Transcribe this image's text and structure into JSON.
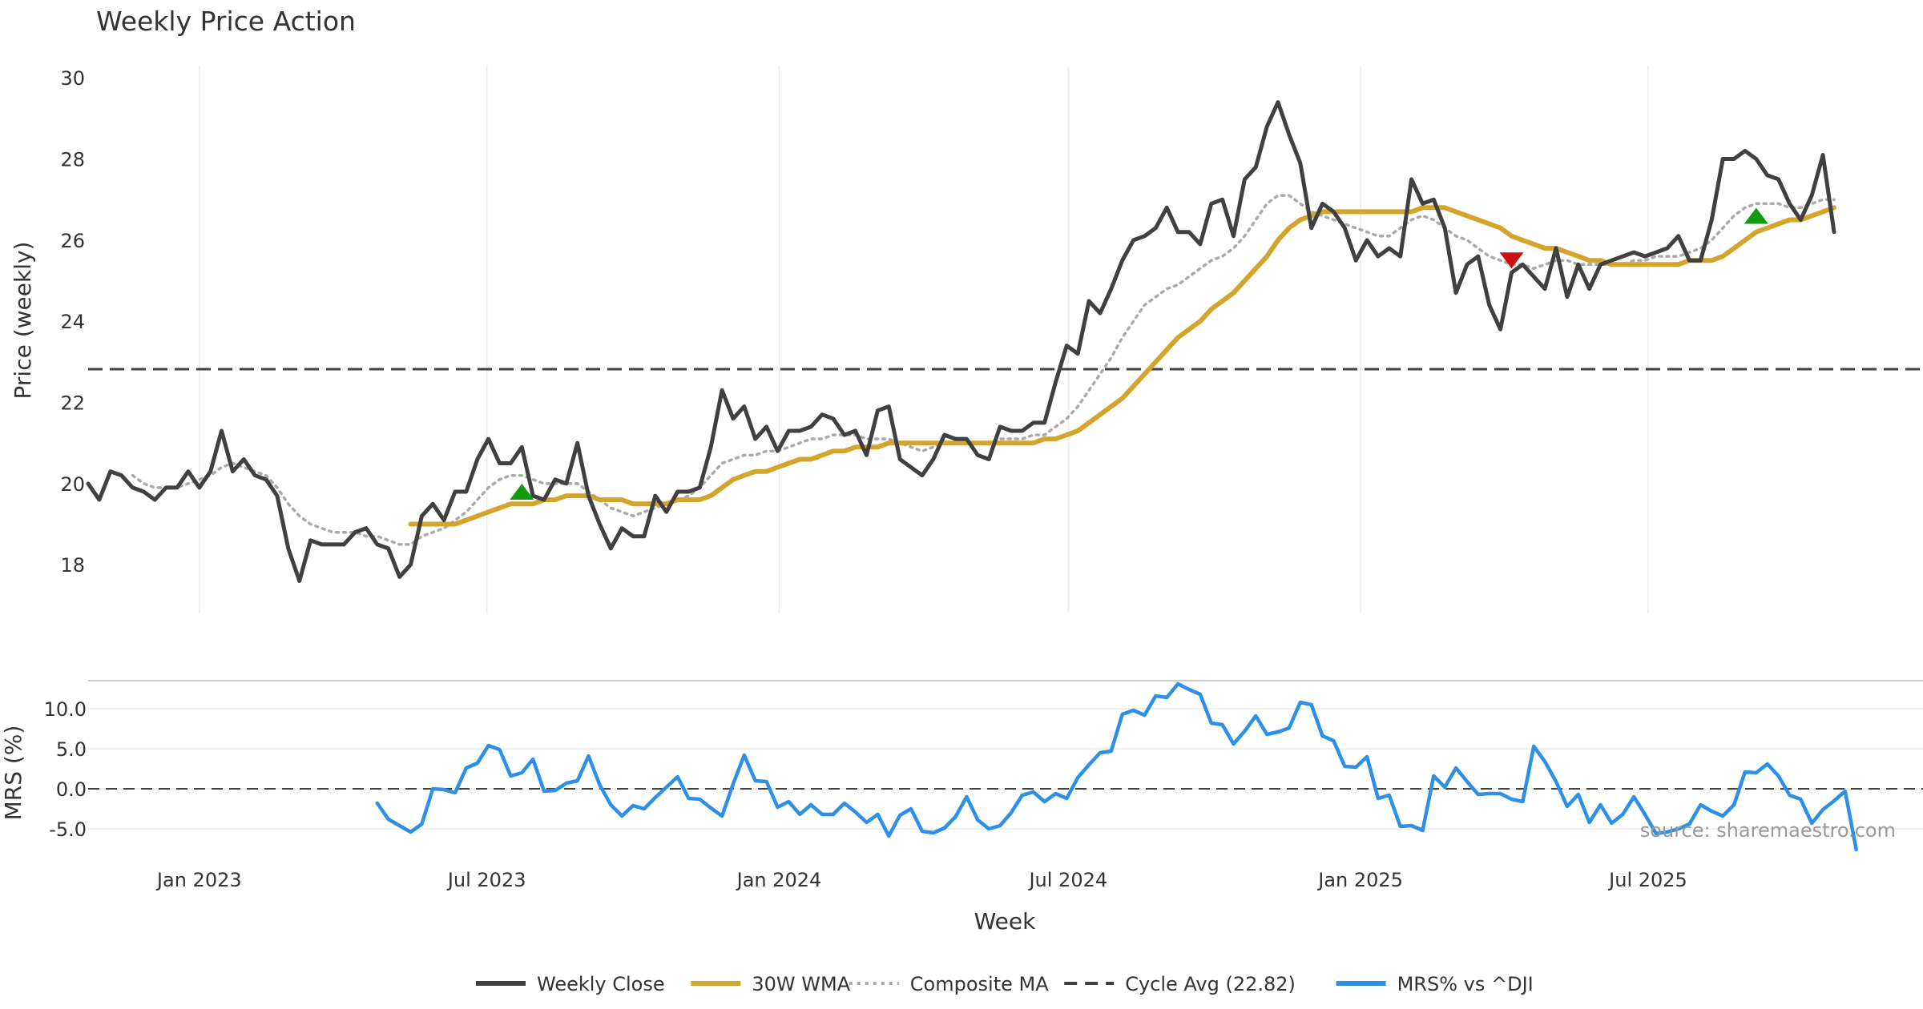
{
  "chart_data": {
    "type": "line",
    "title": "Weekly Price Action",
    "xlabel": "Week",
    "source": "source: sharemaestro.com",
    "x_ticks": [
      "Jan 2023",
      "Jul 2023",
      "Jan 2024",
      "Jul 2024",
      "Jan 2025",
      "Jul 2025"
    ],
    "grid": true,
    "legend_position": "bottom-center",
    "price_panel": {
      "ylabel": "Price (weekly)",
      "ylim": [
        16.8,
        30.3
      ],
      "y_ticks": [
        "18",
        "20",
        "22",
        "24",
        "26",
        "28",
        "30"
      ],
      "cycle_avg": 22.82,
      "x_start": "2022-10-23",
      "weeks": 166,
      "series": [
        {
          "name": "Weekly Close",
          "color": "#404040",
          "values": [
            20.0,
            19.6,
            20.3,
            20.2,
            19.9,
            19.8,
            19.6,
            19.9,
            19.9,
            20.3,
            19.9,
            20.3,
            21.3,
            20.3,
            20.6,
            20.2,
            20.1,
            19.7,
            18.4,
            17.6,
            18.6,
            18.5,
            18.5,
            18.5,
            18.8,
            18.9,
            18.5,
            18.4,
            17.7,
            18.0,
            19.2,
            19.5,
            19.1,
            19.8,
            19.8,
            20.6,
            21.1,
            20.5,
            20.5,
            20.9,
            19.7,
            19.6,
            20.1,
            20.0,
            21.0,
            19.7,
            19.0,
            18.4,
            18.9,
            18.7,
            18.7,
            19.7,
            19.3,
            19.8,
            19.8,
            19.9,
            20.9,
            22.3,
            21.6,
            21.9,
            21.1,
            21.4,
            20.8,
            21.3,
            21.3,
            21.4,
            21.7,
            21.6,
            21.2,
            21.3,
            20.7,
            21.8,
            21.9,
            20.6,
            20.4,
            20.2,
            20.6,
            21.2,
            21.1,
            21.1,
            20.7,
            20.6,
            21.4,
            21.3,
            21.3,
            21.5,
            21.5,
            22.5,
            23.4,
            23.2,
            24.5,
            24.2,
            24.8,
            25.5,
            26.0,
            26.1,
            26.3,
            26.8,
            26.2,
            26.2,
            25.9,
            26.9,
            27.0,
            26.1,
            27.5,
            27.8,
            28.8,
            29.4,
            28.6,
            27.9,
            26.3,
            26.9,
            26.7,
            26.3,
            25.5,
            26.0,
            25.6,
            25.8,
            25.6,
            27.5,
            26.9,
            27.0,
            26.3,
            24.7,
            25.4,
            25.6,
            24.4,
            23.8,
            25.2,
            25.4,
            25.1,
            24.8,
            25.8,
            24.6,
            25.4,
            24.8,
            25.4,
            25.5,
            25.6,
            25.7,
            25.6,
            25.7,
            25.8,
            26.1,
            25.5,
            25.5,
            26.5,
            28.0,
            28.0,
            28.2,
            28.0,
            27.6,
            27.5,
            26.9,
            26.5,
            27.1,
            28.1,
            26.2
          ]
        },
        {
          "name": "30W WMA",
          "color": "#D4A52C",
          "values": [
            null,
            null,
            null,
            null,
            null,
            null,
            null,
            null,
            null,
            null,
            null,
            null,
            null,
            null,
            null,
            null,
            null,
            null,
            null,
            null,
            null,
            null,
            null,
            null,
            null,
            null,
            null,
            null,
            null,
            19.0,
            19.0,
            19.0,
            19.0,
            19.0,
            19.1,
            19.2,
            19.3,
            19.4,
            19.5,
            19.5,
            19.5,
            19.6,
            19.6,
            19.7,
            19.7,
            19.7,
            19.6,
            19.6,
            19.6,
            19.5,
            19.5,
            19.5,
            19.5,
            19.6,
            19.6,
            19.6,
            19.7,
            19.9,
            20.1,
            20.2,
            20.3,
            20.3,
            20.4,
            20.5,
            20.6,
            20.6,
            20.7,
            20.8,
            20.8,
            20.9,
            20.9,
            20.9,
            21.0,
            21.0,
            21.0,
            21.0,
            21.0,
            21.0,
            21.0,
            21.0,
            21.0,
            21.0,
            21.0,
            21.0,
            21.0,
            21.0,
            21.1,
            21.1,
            21.2,
            21.3,
            21.5,
            21.7,
            21.9,
            22.1,
            22.4,
            22.7,
            23.0,
            23.3,
            23.6,
            23.8,
            24.0,
            24.3,
            24.5,
            24.7,
            25.0,
            25.3,
            25.6,
            26.0,
            26.3,
            26.5,
            26.6,
            26.7,
            26.7,
            26.7,
            26.7,
            26.7,
            26.7,
            26.7,
            26.7,
            26.7,
            26.8,
            26.8,
            26.8,
            26.7,
            26.6,
            26.5,
            26.4,
            26.3,
            26.1,
            26.0,
            25.9,
            25.8,
            25.8,
            25.7,
            25.6,
            25.5,
            25.5,
            25.4,
            25.4,
            25.4,
            25.4,
            25.4,
            25.4,
            25.4,
            25.5,
            25.5,
            25.5,
            25.6,
            25.8,
            26.0,
            26.2,
            26.3,
            26.4,
            26.5,
            26.5,
            26.6,
            26.7,
            26.8
          ]
        },
        {
          "name": "Composite MA",
          "color": "#AAAAAA",
          "values": [
            null,
            null,
            null,
            null,
            20.2,
            20.0,
            19.9,
            19.9,
            19.9,
            20.0,
            20.1,
            20.2,
            20.4,
            20.5,
            20.4,
            20.3,
            20.2,
            19.9,
            19.5,
            19.2,
            19.0,
            18.9,
            18.8,
            18.8,
            18.8,
            18.7,
            18.7,
            18.6,
            18.5,
            18.5,
            18.7,
            18.8,
            18.9,
            19.1,
            19.3,
            19.6,
            19.9,
            20.1,
            20.2,
            20.2,
            20.1,
            20.0,
            20.0,
            20.0,
            20.0,
            19.8,
            19.6,
            19.4,
            19.3,
            19.2,
            19.3,
            19.4,
            19.5,
            19.6,
            19.7,
            19.9,
            20.2,
            20.5,
            20.6,
            20.7,
            20.7,
            20.8,
            20.8,
            20.9,
            21.0,
            21.1,
            21.1,
            21.2,
            21.2,
            21.2,
            21.1,
            21.1,
            21.1,
            21.0,
            20.9,
            20.8,
            20.9,
            21.0,
            21.0,
            21.0,
            21.0,
            21.0,
            21.1,
            21.1,
            21.1,
            21.2,
            21.2,
            21.4,
            21.6,
            21.9,
            22.3,
            22.7,
            23.1,
            23.6,
            24.0,
            24.4,
            24.6,
            24.8,
            24.9,
            25.1,
            25.3,
            25.5,
            25.6,
            25.8,
            26.1,
            26.5,
            26.9,
            27.1,
            27.1,
            26.9,
            26.7,
            26.6,
            26.5,
            26.4,
            26.3,
            26.2,
            26.1,
            26.1,
            26.3,
            26.5,
            26.6,
            26.5,
            26.3,
            26.1,
            26.0,
            25.8,
            25.6,
            25.5,
            25.4,
            25.4,
            25.3,
            25.4,
            25.5,
            25.5,
            25.4,
            25.4,
            25.4,
            25.4,
            25.4,
            25.5,
            25.5,
            25.6,
            25.6,
            25.6,
            25.7,
            25.8,
            26.0,
            26.3,
            26.6,
            26.8,
            26.9,
            26.9,
            26.9,
            26.8,
            26.8,
            26.9,
            27.0,
            27.0
          ]
        }
      ],
      "signals": [
        {
          "type": "buy",
          "week": 39,
          "value": 19.8,
          "color": "#119911"
        },
        {
          "type": "sell",
          "week": 128,
          "value": 25.5,
          "color": "#CC1111"
        },
        {
          "type": "buy",
          "week": 150,
          "value": 26.6,
          "color": "#119911"
        }
      ]
    },
    "mrs_panel": {
      "ylabel": "MRS (%)",
      "ylim": [
        -7.5,
        13.5
      ],
      "y_ticks": [
        "-5.0",
        "0.0",
        "5.0",
        "10.0"
      ],
      "series": {
        "name": "MRS% vs ^DJI",
        "color": "#2E8FE6",
        "start_week": 26,
        "values": [
          -1.8,
          -3.8,
          -4.6,
          -5.4,
          -4.4,
          0.0,
          -0.1,
          -0.5,
          2.6,
          3.2,
          5.4,
          4.9,
          1.6,
          2.0,
          3.7,
          -0.3,
          -0.2,
          0.7,
          1.0,
          4.1,
          0.5,
          -2.0,
          -3.4,
          -2.1,
          -2.5,
          -1.1,
          0.2,
          1.5,
          -1.2,
          -1.3,
          -2.4,
          -3.4,
          0.6,
          4.2,
          1.0,
          0.9,
          -2.3,
          -1.6,
          -3.2,
          -2.0,
          -3.2,
          -3.2,
          -1.8,
          -2.9,
          -4.2,
          -3.2,
          -5.9,
          -3.3,
          -2.5,
          -5.3,
          -5.5,
          -4.9,
          -3.5,
          -1.0,
          -3.9,
          -5.0,
          -4.6,
          -3.0,
          -0.8,
          -0.4,
          -1.6,
          -0.6,
          -1.2,
          1.4,
          3.0,
          4.5,
          4.7,
          9.3,
          9.8,
          9.2,
          11.6,
          11.4,
          13.1,
          12.4,
          11.8,
          8.2,
          8.0,
          5.6,
          7.2,
          9.1,
          6.8,
          7.1,
          7.6,
          10.8,
          10.5,
          6.6,
          6.0,
          2.8,
          2.7,
          4.0,
          -1.2,
          -0.8,
          -4.7,
          -4.6,
          -5.2,
          1.6,
          0.2,
          2.6,
          0.9,
          -0.7,
          -0.6,
          -0.6,
          -1.3,
          -1.6,
          5.3,
          3.4,
          0.9,
          -2.2,
          -0.7,
          -4.2,
          -2.0,
          -4.3,
          -3.2,
          -1.0,
          -3.2,
          -5.6,
          -5.4,
          -5.0,
          -4.4,
          -2.0,
          -2.8,
          -3.4,
          -2.0,
          2.1,
          2.0,
          3.1,
          1.6,
          -0.8,
          -1.3,
          -4.3,
          -2.6,
          -1.5,
          -0.3,
          -7.6
        ]
      }
    },
    "legend": [
      {
        "label": "Weekly Close",
        "color": "#404040",
        "style": "solid"
      },
      {
        "label": "30W WMA",
        "color": "#D4A52C",
        "style": "solid"
      },
      {
        "label": "Composite MA",
        "color": "#AAAAAA",
        "style": "dotted"
      },
      {
        "label": "Cycle Avg (22.82)",
        "color": "#404040",
        "style": "dashed"
      },
      {
        "label": "MRS% vs ^DJI",
        "color": "#2E8FE6",
        "style": "solid"
      }
    ]
  }
}
